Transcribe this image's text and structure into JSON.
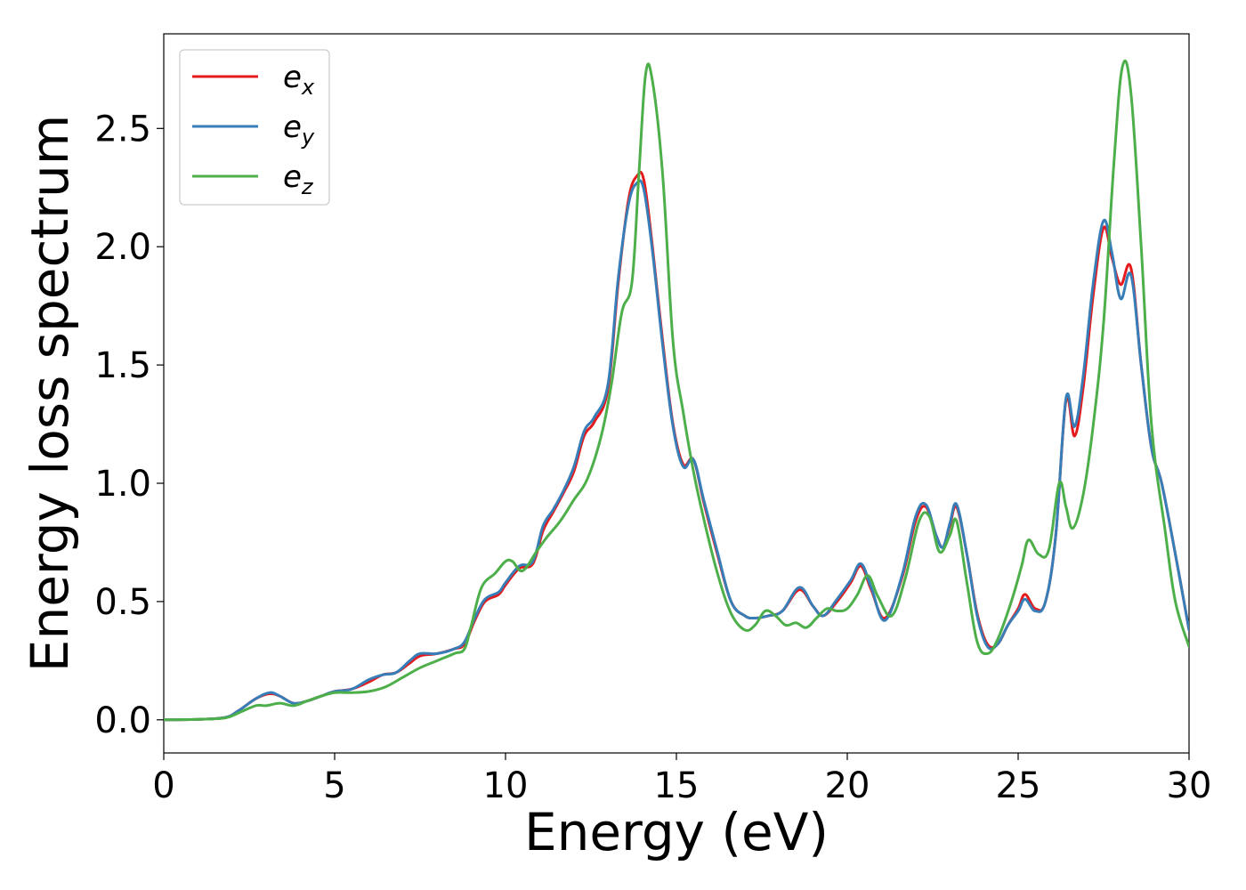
{
  "chart_data": {
    "type": "line",
    "xlabel": "Energy (eV)",
    "ylabel": "Energy loss spectrum",
    "xlim": [
      0,
      30
    ],
    "ylim": [
      -0.14,
      2.9
    ],
    "xticks": [
      0,
      5,
      10,
      15,
      20,
      25,
      30
    ],
    "xtick_labels": [
      "0",
      "5",
      "10",
      "15",
      "20",
      "25",
      "30"
    ],
    "yticks": [
      0.0,
      0.5,
      1.0,
      1.5,
      2.0,
      2.5
    ],
    "ytick_labels": [
      "0.0",
      "0.5",
      "1.0",
      "1.5",
      "2.0",
      "2.5"
    ],
    "grid": false,
    "legend_position": "top-left",
    "series": [
      {
        "name": "e_x",
        "name_base": "e",
        "name_sub": "x",
        "color": "#e41a1c",
        "x": [
          0,
          1,
          1.8,
          2.2,
          2.7,
          3.1,
          3.4,
          3.8,
          4.2,
          4.6,
          5.0,
          5.5,
          6.0,
          6.4,
          6.8,
          7.2,
          7.5,
          8.0,
          8.5,
          8.8,
          9.1,
          9.4,
          9.8,
          10.0,
          10.4,
          10.8,
          11.1,
          11.4,
          11.7,
          12.0,
          12.3,
          12.6,
          13.0,
          13.3,
          13.6,
          13.85,
          14.05,
          14.3,
          14.6,
          14.9,
          15.2,
          15.5,
          15.8,
          16.2,
          16.6,
          17.0,
          17.3,
          17.7,
          18.1,
          18.6,
          19.0,
          19.3,
          19.7,
          20.1,
          20.4,
          20.7,
          21.1,
          21.6,
          22.0,
          22.3,
          22.6,
          22.8,
          23.0,
          23.2,
          23.5,
          23.8,
          24.1,
          24.4,
          24.7,
          25.0,
          25.2,
          25.5,
          25.8,
          26.1,
          26.4,
          26.65,
          26.9,
          27.2,
          27.5,
          27.75,
          28.0,
          28.3,
          28.6,
          28.9,
          29.2,
          29.6,
          30.0
        ],
        "values": [
          0.0,
          0.002,
          0.01,
          0.04,
          0.09,
          0.11,
          0.1,
          0.07,
          0.08,
          0.1,
          0.12,
          0.13,
          0.16,
          0.19,
          0.2,
          0.24,
          0.27,
          0.28,
          0.3,
          0.32,
          0.42,
          0.5,
          0.53,
          0.57,
          0.64,
          0.66,
          0.8,
          0.88,
          0.96,
          1.05,
          1.2,
          1.26,
          1.4,
          1.85,
          2.2,
          2.3,
          2.28,
          2.0,
          1.6,
          1.25,
          1.08,
          1.1,
          0.92,
          0.7,
          0.5,
          0.44,
          0.43,
          0.44,
          0.46,
          0.55,
          0.48,
          0.44,
          0.5,
          0.58,
          0.65,
          0.55,
          0.43,
          0.6,
          0.84,
          0.9,
          0.78,
          0.73,
          0.82,
          0.9,
          0.7,
          0.45,
          0.32,
          0.32,
          0.4,
          0.47,
          0.53,
          0.47,
          0.5,
          0.78,
          1.35,
          1.2,
          1.4,
          1.8,
          2.08,
          1.95,
          1.84,
          1.91,
          1.5,
          1.15,
          1.0,
          0.7,
          0.38
        ]
      },
      {
        "name": "e_y",
        "name_base": "e",
        "name_sub": "y",
        "color": "#377eb8",
        "x": [
          0,
          1,
          1.8,
          2.2,
          2.7,
          3.1,
          3.4,
          3.8,
          4.2,
          4.6,
          5.0,
          5.5,
          6.0,
          6.4,
          6.8,
          7.2,
          7.5,
          8.0,
          8.5,
          8.8,
          9.1,
          9.4,
          9.8,
          10.0,
          10.4,
          10.8,
          11.1,
          11.4,
          11.7,
          12.0,
          12.3,
          12.6,
          13.0,
          13.3,
          13.6,
          13.85,
          14.05,
          14.3,
          14.6,
          14.9,
          15.2,
          15.5,
          15.8,
          16.2,
          16.6,
          17.0,
          17.3,
          17.7,
          18.1,
          18.6,
          19.0,
          19.3,
          19.7,
          20.1,
          20.4,
          20.7,
          21.1,
          21.6,
          22.0,
          22.3,
          22.6,
          22.8,
          23.0,
          23.2,
          23.5,
          23.8,
          24.1,
          24.4,
          24.7,
          25.0,
          25.2,
          25.5,
          25.8,
          26.1,
          26.4,
          26.65,
          26.9,
          27.2,
          27.5,
          27.75,
          28.0,
          28.3,
          28.6,
          28.9,
          29.2,
          29.6,
          30.0
        ],
        "values": [
          0.0,
          0.002,
          0.01,
          0.04,
          0.09,
          0.115,
          0.1,
          0.07,
          0.08,
          0.1,
          0.12,
          0.13,
          0.17,
          0.19,
          0.2,
          0.25,
          0.28,
          0.28,
          0.3,
          0.33,
          0.43,
          0.51,
          0.54,
          0.58,
          0.65,
          0.67,
          0.82,
          0.89,
          0.97,
          1.07,
          1.22,
          1.28,
          1.42,
          1.87,
          2.18,
          2.27,
          2.24,
          1.98,
          1.58,
          1.24,
          1.07,
          1.1,
          0.93,
          0.71,
          0.5,
          0.44,
          0.43,
          0.44,
          0.46,
          0.56,
          0.48,
          0.44,
          0.51,
          0.59,
          0.66,
          0.56,
          0.42,
          0.61,
          0.86,
          0.91,
          0.78,
          0.73,
          0.83,
          0.91,
          0.7,
          0.44,
          0.31,
          0.32,
          0.4,
          0.46,
          0.51,
          0.46,
          0.5,
          0.78,
          1.36,
          1.24,
          1.45,
          1.85,
          2.11,
          1.97,
          1.78,
          1.88,
          1.5,
          1.15,
          1.0,
          0.7,
          0.38
        ]
      },
      {
        "name": "e_z",
        "name_base": "e",
        "name_sub": "z",
        "color": "#4daf4a",
        "x": [
          0,
          1,
          1.8,
          2.2,
          2.7,
          3.0,
          3.4,
          3.8,
          4.2,
          4.6,
          5.0,
          5.5,
          6.0,
          6.5,
          7.0,
          7.5,
          8.0,
          8.5,
          8.8,
          9.0,
          9.3,
          9.7,
          10.0,
          10.2,
          10.5,
          10.9,
          11.2,
          11.6,
          12.0,
          12.4,
          12.8,
          13.1,
          13.4,
          13.7,
          13.9,
          14.1,
          14.3,
          14.6,
          14.9,
          15.2,
          15.5,
          15.8,
          16.2,
          16.6,
          17.0,
          17.3,
          17.6,
          17.9,
          18.2,
          18.5,
          18.8,
          19.1,
          19.4,
          19.7,
          20.0,
          20.3,
          20.6,
          20.9,
          21.3,
          21.7,
          22.1,
          22.4,
          22.7,
          23.0,
          23.2,
          23.5,
          23.8,
          24.1,
          24.4,
          24.8,
          25.1,
          25.3,
          25.6,
          25.9,
          26.2,
          26.4,
          26.6,
          26.9,
          27.2,
          27.5,
          27.8,
          28.05,
          28.3,
          28.6,
          28.9,
          29.3,
          29.6,
          30.0
        ],
        "values": [
          0.0,
          0.002,
          0.008,
          0.03,
          0.06,
          0.06,
          0.07,
          0.06,
          0.08,
          0.1,
          0.115,
          0.115,
          0.12,
          0.14,
          0.18,
          0.22,
          0.25,
          0.28,
          0.3,
          0.4,
          0.56,
          0.62,
          0.67,
          0.67,
          0.63,
          0.71,
          0.77,
          0.84,
          0.93,
          1.02,
          1.2,
          1.42,
          1.72,
          1.85,
          2.3,
          2.73,
          2.7,
          2.3,
          1.6,
          1.3,
          1.05,
          0.85,
          0.62,
          0.45,
          0.38,
          0.4,
          0.46,
          0.44,
          0.4,
          0.41,
          0.39,
          0.43,
          0.47,
          0.46,
          0.47,
          0.53,
          0.61,
          0.52,
          0.44,
          0.6,
          0.84,
          0.86,
          0.71,
          0.78,
          0.84,
          0.58,
          0.33,
          0.28,
          0.34,
          0.5,
          0.65,
          0.76,
          0.7,
          0.72,
          1.0,
          0.9,
          0.81,
          0.95,
          1.25,
          1.68,
          2.35,
          2.76,
          2.65,
          2.0,
          1.25,
          0.8,
          0.5,
          0.31
        ]
      }
    ]
  }
}
